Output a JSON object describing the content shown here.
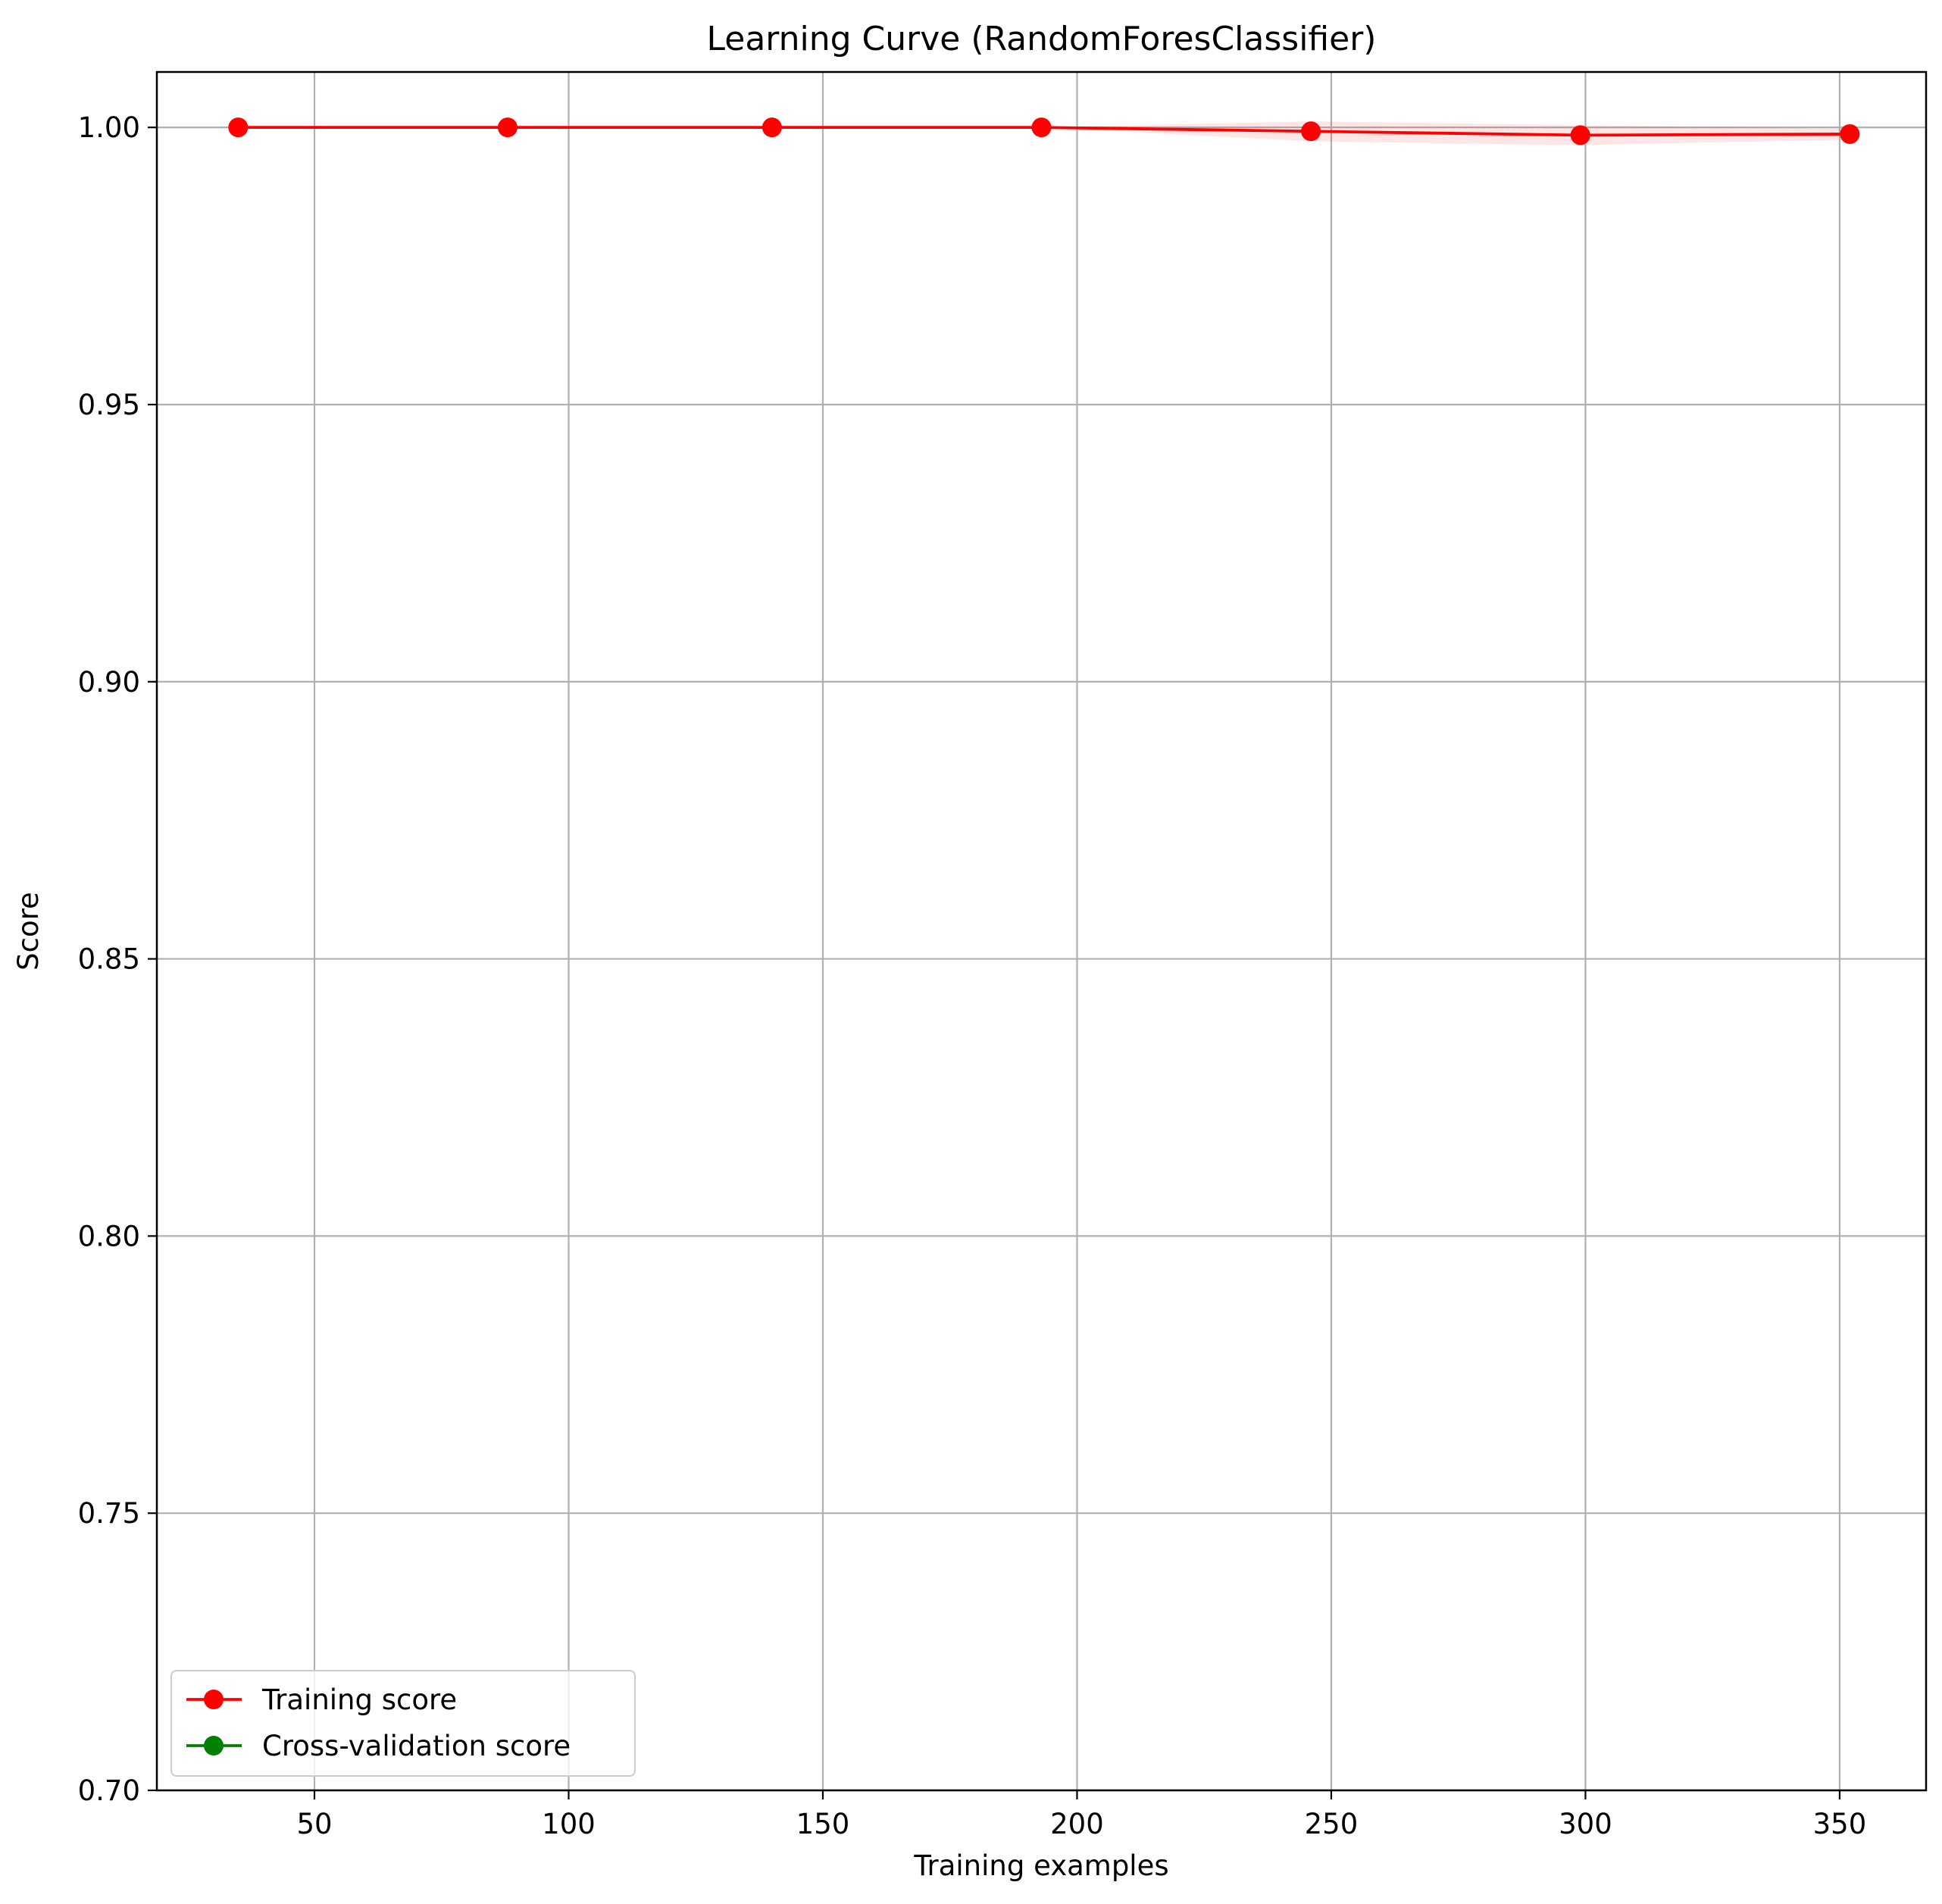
{
  "chart_data": {
    "type": "line",
    "title": "Learning Curve (RandomForesClassifier)",
    "xlabel": "Training examples",
    "ylabel": "Score",
    "xlim": [
      19,
      367
    ],
    "ylim": [
      0.7,
      1.01
    ],
    "xticks": [
      50,
      100,
      150,
      200,
      250,
      300,
      350
    ],
    "xtick_labels": [
      "50",
      "100",
      "150",
      "200",
      "250",
      "300",
      "350"
    ],
    "yticks": [
      0.7,
      0.75,
      0.8,
      0.85,
      0.9,
      0.95,
      1.0
    ],
    "ytick_labels": [
      "0.70",
      "0.75",
      "0.80",
      "0.85",
      "0.90",
      "0.95",
      "1.00"
    ],
    "grid": true,
    "legend_position": "lower-left",
    "series": [
      {
        "name": "Training score",
        "color": "#ff0000",
        "x": [
          35,
          88,
          140,
          193,
          246,
          299,
          352
        ],
        "y": [
          1.0,
          1.0,
          1.0,
          1.0,
          0.9993,
          0.9986,
          0.9988
        ],
        "band_lower": [
          1.0,
          1.0,
          1.0,
          1.0,
          0.9975,
          0.9968,
          0.9978
        ],
        "band_upper": [
          1.0,
          1.0,
          1.0,
          1.0,
          1.0011,
          1.0004,
          0.9998
        ]
      },
      {
        "name": "Cross-validation score",
        "color": "#008000",
        "x": [],
        "y": []
      }
    ]
  }
}
